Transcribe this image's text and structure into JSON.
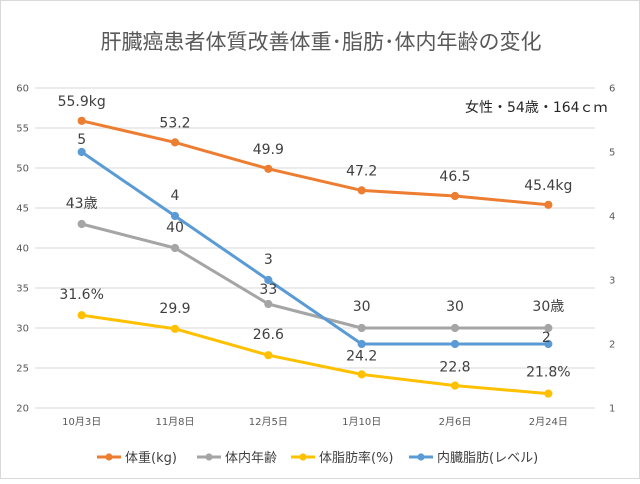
{
  "chart_data": {
    "type": "line",
    "title": "肝臓癌患者体質改善体重･脂肪･体内年齢の変化",
    "annotation": "女性・54歳・164ｃｍ",
    "categories": [
      "10月3日",
      "11月8日",
      "12月5日",
      "1月10日",
      "2月6日",
      "2月24日"
    ],
    "y_left": {
      "min": 20,
      "max": 60,
      "ticks": [
        "20",
        "25",
        "30",
        "35",
        "40",
        "45",
        "50",
        "55",
        "60"
      ]
    },
    "y_right": {
      "min": 1,
      "max": 6,
      "ticks": [
        "1",
        "2",
        "3",
        "4",
        "5",
        "6"
      ]
    },
    "grid": true,
    "legend_position": "bottom",
    "series": [
      {
        "name": "体重(kg)",
        "axis": "left",
        "color": "#ed7d31",
        "values": [
          55.9,
          53.2,
          49.9,
          47.2,
          46.5,
          45.4
        ],
        "labels": [
          "55.9kg",
          "53.2",
          "49.9",
          "47.2",
          "46.5",
          "45.4kg"
        ]
      },
      {
        "name": "体内年齢",
        "axis": "left",
        "color": "#a5a5a5",
        "values": [
          43,
          40,
          33,
          30,
          30,
          30
        ],
        "labels": [
          "43歳",
          "40",
          "33",
          "30",
          "30",
          "30歳"
        ]
      },
      {
        "name": "体脂肪率(%)",
        "axis": "left",
        "color": "#ffc000",
        "values": [
          31.6,
          29.9,
          26.6,
          24.2,
          22.8,
          21.8
        ],
        "labels": [
          "31.6%",
          "29.9",
          "26.6",
          "24.2",
          "22.8",
          "21.8%"
        ]
      },
      {
        "name": "内臓脂肪(レベル)",
        "axis": "right",
        "color": "#5b9bd5",
        "values": [
          5,
          4,
          3,
          2,
          2,
          2
        ],
        "labels": [
          "5",
          "4",
          "3",
          "",
          "",
          "2"
        ]
      }
    ]
  }
}
